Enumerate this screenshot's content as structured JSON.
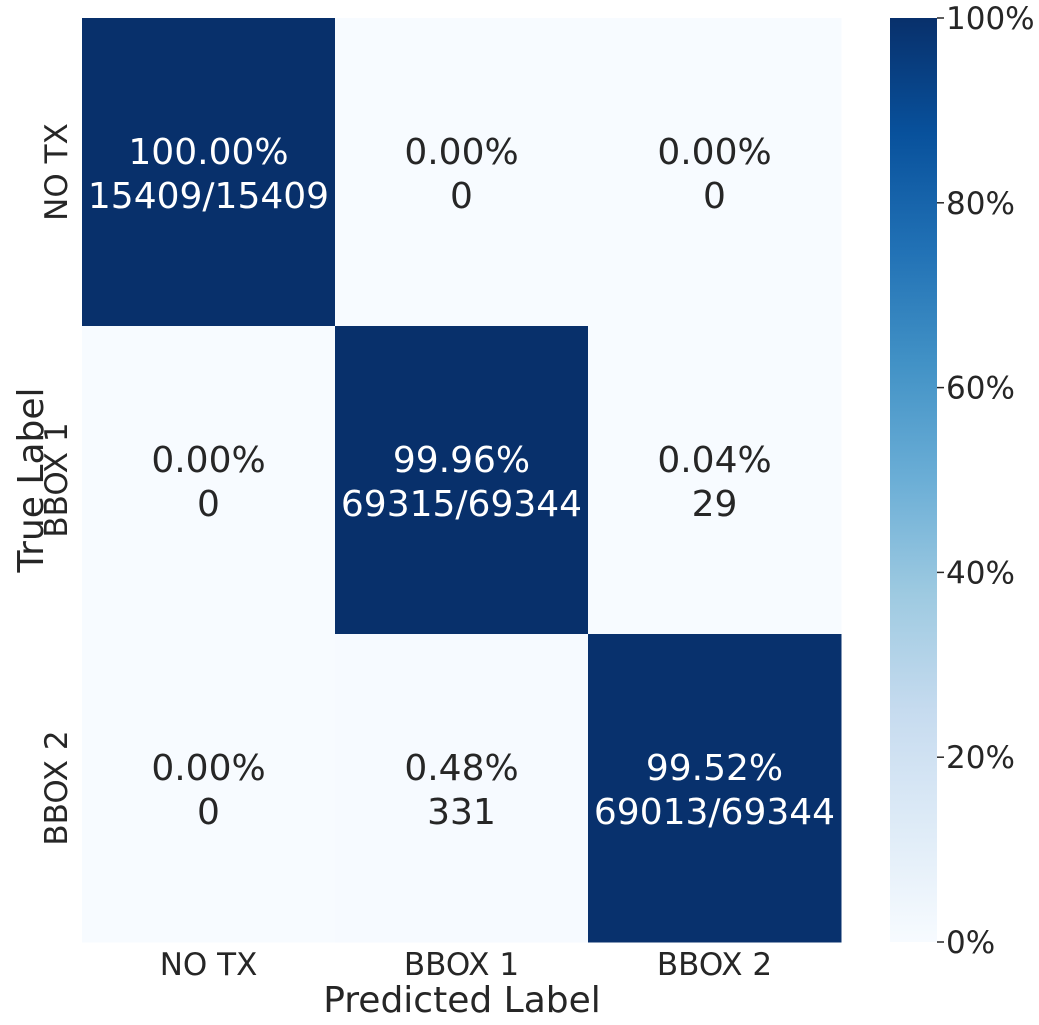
{
  "chart_data": {
    "type": "heatmap",
    "title": "",
    "xlabel": "Predicted Label",
    "ylabel": "True Label",
    "x_categories": [
      "NO TX",
      "BBOX 1",
      "BBOX 2"
    ],
    "y_categories": [
      "NO TX",
      "BBOX 1",
      "BBOX 2"
    ],
    "values": [
      [
        100.0,
        0.0,
        0.0
      ],
      [
        0.0,
        99.96,
        0.04
      ],
      [
        0.0,
        0.48,
        99.52
      ]
    ],
    "cell_labels": [
      [
        {
          "percent": "100.00%",
          "count": "15409/15409"
        },
        {
          "percent": "0.00%",
          "count": "0"
        },
        {
          "percent": "0.00%",
          "count": "0"
        }
      ],
      [
        {
          "percent": "0.00%",
          "count": "0"
        },
        {
          "percent": "99.96%",
          "count": "69315/69344"
        },
        {
          "percent": "0.04%",
          "count": "29"
        }
      ],
      [
        {
          "percent": "0.00%",
          "count": "0"
        },
        {
          "percent": "0.48%",
          "count": "331"
        },
        {
          "percent": "99.52%",
          "count": "69013/69344"
        }
      ]
    ],
    "colorbar": {
      "range": [
        0,
        100
      ],
      "ticks": [
        "0%",
        "20%",
        "40%",
        "60%",
        "80%",
        "100%"
      ],
      "colormap": "Blues",
      "low_color": "#f7fbff",
      "high_color": "#08306b"
    }
  }
}
